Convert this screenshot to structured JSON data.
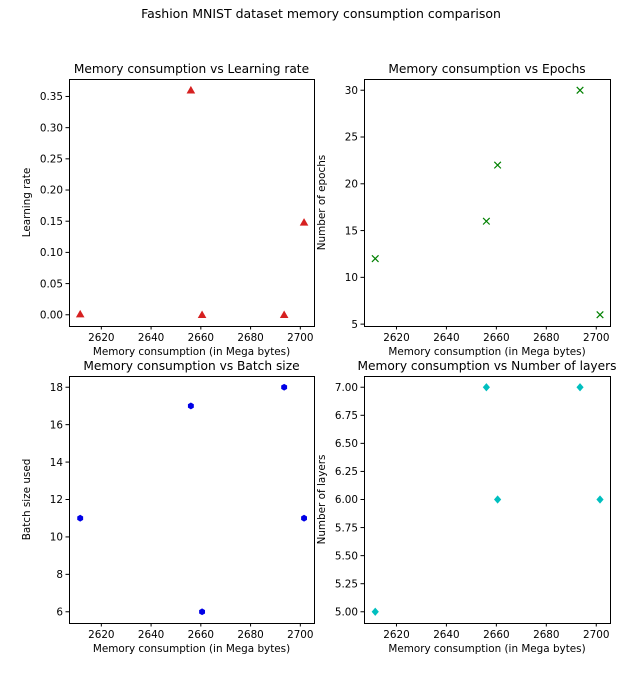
{
  "figure": {
    "suptitle": "Fashion MNIST dataset memory consumption comparison"
  },
  "chart_data": [
    {
      "type": "scatter",
      "title": "Memory consumption vs Learning rate",
      "xlabel": "Memory consumption (in Mega bytes)",
      "ylabel": "Learning rate",
      "marker": "triangle",
      "color": "#d62020",
      "x": [
        2611.5,
        2656,
        2660.5,
        2693.5,
        2701.5
      ],
      "y": [
        0.001,
        0.36,
        0.0,
        0.0,
        0.148
      ],
      "xlim": [
        2607,
        2705.5
      ],
      "ylim": [
        -0.018,
        0.378
      ],
      "xticks": [
        2620,
        2640,
        2660,
        2680,
        2700
      ],
      "xtick_labels": [
        "2620",
        "2640",
        "2660",
        "2680",
        "2700"
      ],
      "yticks": [
        0.0,
        0.05,
        0.1,
        0.15,
        0.2,
        0.25,
        0.3,
        0.35
      ],
      "ytick_labels": [
        "0.00",
        "0.05",
        "0.10",
        "0.15",
        "0.20",
        "0.25",
        "0.30",
        "0.35"
      ]
    },
    {
      "type": "scatter",
      "title": "Memory consumption vs Epochs",
      "xlabel": "Memory consumption (in Mega bytes)",
      "ylabel": "Number of epochs",
      "marker": "x",
      "color": "#008000",
      "x": [
        2611.5,
        2656,
        2660.5,
        2693.5,
        2701.5
      ],
      "y": [
        12,
        16,
        22,
        30,
        6
      ],
      "xlim": [
        2607,
        2705.5
      ],
      "ylim": [
        4.8,
        31.2
      ],
      "xticks": [
        2620,
        2640,
        2660,
        2680,
        2700
      ],
      "xtick_labels": [
        "2620",
        "2640",
        "2660",
        "2680",
        "2700"
      ],
      "yticks": [
        5,
        10,
        15,
        20,
        25,
        30
      ],
      "ytick_labels": [
        "5",
        "10",
        "15",
        "20",
        "25",
        "30"
      ]
    },
    {
      "type": "scatter",
      "title": "Memory consumption vs Batch size",
      "xlabel": "Memory consumption (in Mega bytes)",
      "ylabel": "Batch size used",
      "marker": "hexagon",
      "color": "#0000e6",
      "x": [
        2611.5,
        2656,
        2660.5,
        2693.5,
        2701.5
      ],
      "y": [
        11,
        17,
        6,
        18,
        11
      ],
      "xlim": [
        2607,
        2705.5
      ],
      "ylim": [
        5.4,
        18.6
      ],
      "xticks": [
        2620,
        2640,
        2660,
        2680,
        2700
      ],
      "xtick_labels": [
        "2620",
        "2640",
        "2660",
        "2680",
        "2700"
      ],
      "yticks": [
        6,
        8,
        10,
        12,
        14,
        16,
        18
      ],
      "ytick_labels": [
        "6",
        "8",
        "10",
        "12",
        "14",
        "16",
        "18"
      ]
    },
    {
      "type": "scatter",
      "title": "Memory consumption vs Number of layers",
      "xlabel": "Memory consumption (in Mega bytes)",
      "ylabel": "Number of layers",
      "marker": "diamond",
      "color": "#00bfbf",
      "x": [
        2611.5,
        2656,
        2660.5,
        2693.5,
        2701.5
      ],
      "y": [
        5,
        7,
        6,
        7,
        6
      ],
      "xlim": [
        2607,
        2705.5
      ],
      "ylim": [
        4.9,
        7.1
      ],
      "xticks": [
        2620,
        2640,
        2660,
        2680,
        2700
      ],
      "xtick_labels": [
        "2620",
        "2640",
        "2660",
        "2680",
        "2700"
      ],
      "yticks": [
        5.0,
        5.25,
        5.5,
        5.75,
        6.0,
        6.25,
        6.5,
        6.75,
        7.0
      ],
      "ytick_labels": [
        "5.00",
        "5.25",
        "5.50",
        "5.75",
        "6.00",
        "6.25",
        "6.50",
        "6.75",
        "7.00"
      ]
    }
  ]
}
